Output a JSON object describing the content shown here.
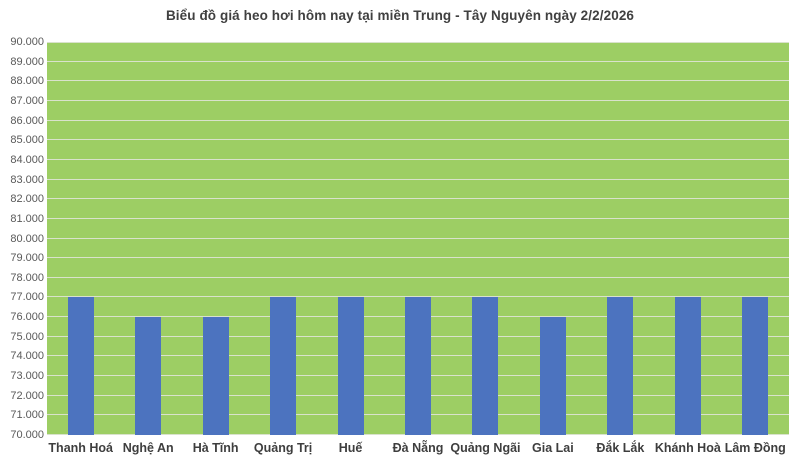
{
  "chart_data": {
    "type": "bar",
    "title": "Biểu đồ giá heo hơi hôm nay tại miền Trung - Tây Nguyên ngày 2/2/2026",
    "categories": [
      "Thanh Hoá",
      "Nghệ An",
      "Hà Tĩnh",
      "Quảng Trị",
      "Huế",
      "Đà Nẵng",
      "Quảng Ngãi",
      "Gia Lai",
      "Đắk Lắk",
      "Khánh Hoà",
      "Lâm Đồng"
    ],
    "values": [
      77000,
      76000,
      76000,
      77000,
      77000,
      77000,
      77000,
      76000,
      77000,
      77000,
      77000
    ],
    "xlabel": "",
    "ylabel": "",
    "ylim": [
      70000,
      90000
    ],
    "ytick_step": 1000,
    "y_tick_labels": [
      "90.000",
      "89.000",
      "88.000",
      "87.000",
      "86.000",
      "85.000",
      "84.000",
      "83.000",
      "82.000",
      "81.000",
      "80.000",
      "79.000",
      "78.000",
      "77.000",
      "76.000",
      "75.000",
      "74.000",
      "73.000",
      "72.000",
      "71.000",
      "70.000"
    ],
    "grid": "horizontal",
    "legend": "none",
    "colors": {
      "bar": "#4C73BF",
      "plot_bg": "#9DCE64",
      "gridline": "#D9E2CC",
      "title_text": "#404040",
      "y_tick_text": "#595959",
      "category_text": "#3E3E3E"
    }
  }
}
